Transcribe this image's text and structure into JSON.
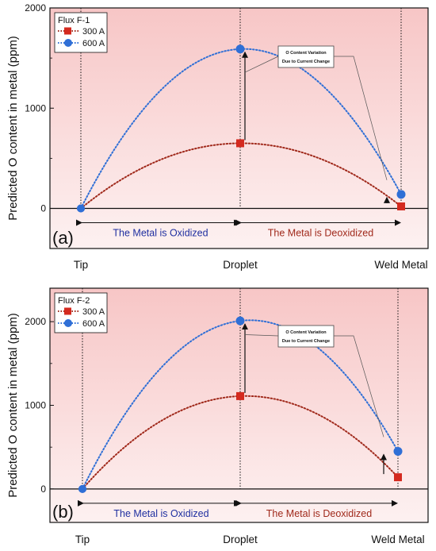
{
  "chart_data": [
    {
      "type": "line",
      "panel_label": "(a)",
      "ylabel": "Predicted O content in metal (ppm)",
      "ylim": [
        -400,
        2000
      ],
      "yticks": [
        0,
        1000,
        2000
      ],
      "categories": [
        "Tip",
        "Droplet",
        "Weld Metal"
      ],
      "legend": {
        "title": "Flux F-1",
        "placement": "top-left"
      },
      "series": [
        {
          "name": "300 A",
          "color": "#d42a1f",
          "line_color": "#a0291b",
          "marker": "square",
          "values": [
            0,
            650,
            20
          ]
        },
        {
          "name": "600 A",
          "color": "#2f6fd6",
          "line_color": "#2f6fd6",
          "marker": "circle",
          "values": [
            0,
            1590,
            140
          ]
        }
      ],
      "regions": [
        {
          "text": "The Metal is Oxidized",
          "color": "#1f2fa0"
        },
        {
          "text": "The Metal is Deoxidized",
          "color": "#a0291b"
        }
      ],
      "annotation": {
        "line1": "O Content Variation",
        "line2": "Due to Current Change"
      }
    },
    {
      "type": "line",
      "panel_label": "(b)",
      "ylabel": "Predicted O content in metal (ppm)",
      "ylim": [
        -400,
        2400
      ],
      "yticks": [
        0,
        1000,
        2000
      ],
      "categories": [
        "Tip",
        "Droplet",
        "Weld Metal"
      ],
      "legend": {
        "title": "Flux F-2",
        "placement": "top-left"
      },
      "series": [
        {
          "name": "300 A",
          "color": "#d42a1f",
          "line_color": "#a0291b",
          "marker": "square",
          "values": [
            0,
            1110,
            140
          ]
        },
        {
          "name": "600 A",
          "color": "#2f6fd6",
          "line_color": "#2f6fd6",
          "marker": "circle",
          "values": [
            0,
            2010,
            450
          ]
        }
      ],
      "regions": [
        {
          "text": "The Metal is Oxidized",
          "color": "#1f2fa0"
        },
        {
          "text": "The Metal is Deoxidized",
          "color": "#a0291b"
        }
      ],
      "annotation": {
        "line1": "O Content Variation",
        "line2": "Due to Current Change"
      }
    }
  ]
}
